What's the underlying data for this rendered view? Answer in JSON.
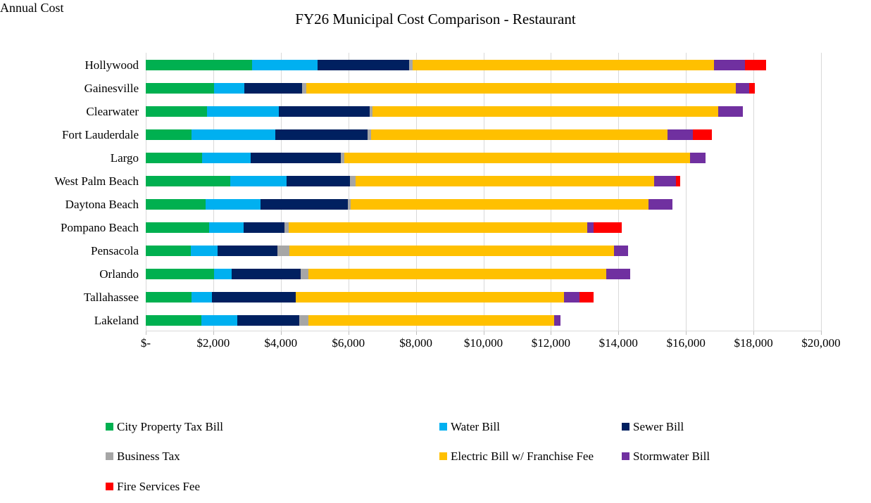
{
  "title": "FY26 Municipal Cost Comparison - Restaurant",
  "chart_data": {
    "type": "bar",
    "orientation": "horizontal",
    "stacked": true,
    "title": "FY26 Municipal Cost Comparison - Restaurant",
    "xlabel": "Annual Cost",
    "ylabel": "",
    "xlim": [
      0,
      20000
    ],
    "grid": true,
    "legend_position": "bottom",
    "categories": [
      "Hollywood",
      "Gainesville",
      "Clearwater",
      "Fort Lauderdale",
      "Largo",
      "West Palm Beach",
      "Daytona Beach",
      "Pompano Beach",
      "Pensacola",
      "Orlando",
      "Tallahassee",
      "Lakeland"
    ],
    "series": [
      {
        "name": "City Property Tax Bill",
        "color": "#00B050",
        "values": [
          3150,
          2020,
          1810,
          1350,
          1660,
          2500,
          1780,
          1880,
          1330,
          2020,
          1350,
          1640
        ]
      },
      {
        "name": "Water Bill",
        "color": "#00B0F0",
        "values": [
          1940,
          910,
          2140,
          2490,
          1440,
          1680,
          1610,
          1025,
          790,
          530,
          620,
          1070
        ]
      },
      {
        "name": "Sewer Bill",
        "color": "#002060",
        "values": [
          2715,
          1700,
          2680,
          2740,
          2670,
          1860,
          2600,
          1205,
          1780,
          2040,
          2480,
          1830
        ]
      },
      {
        "name": "Business Tax",
        "color": "#A6A6A6",
        "values": [
          105,
          125,
          80,
          85,
          105,
          175,
          75,
          120,
          350,
          225,
          0,
          280
        ]
      },
      {
        "name": "Electric Bill w/ Franchise Fee",
        "color": "#FFC000",
        "values": [
          8930,
          12730,
          10250,
          8780,
          10245,
          8845,
          8820,
          8845,
          9615,
          8820,
          7930,
          7280
        ]
      },
      {
        "name": "Stormwater Bill",
        "color": "#7030A0",
        "values": [
          910,
          385,
          730,
          770,
          455,
          645,
          715,
          190,
          425,
          720,
          475,
          180
        ]
      },
      {
        "name": "Fire Services Fee",
        "color": "#FF0000",
        "values": [
          630,
          175,
          0,
          550,
          0,
          125,
          0,
          840,
          0,
          0,
          405,
          0
        ]
      }
    ],
    "xticks": [
      0,
      2000,
      4000,
      6000,
      8000,
      10000,
      12000,
      14000,
      16000,
      18000,
      20000
    ],
    "xtick_labels": [
      "$-",
      "$2,000",
      "$4,000",
      "$6,000",
      "$8,000",
      "$10,000",
      "$12,000",
      "$14,000",
      "$16,000",
      "$18,000",
      "$20,000"
    ],
    "totals": [
      18380,
      18045,
      17690,
      16765,
      16575,
      15830,
      15600,
      14105,
      14290,
      14355,
      13260,
      12280
    ],
    "gridline_color": "#D9D9D9"
  }
}
